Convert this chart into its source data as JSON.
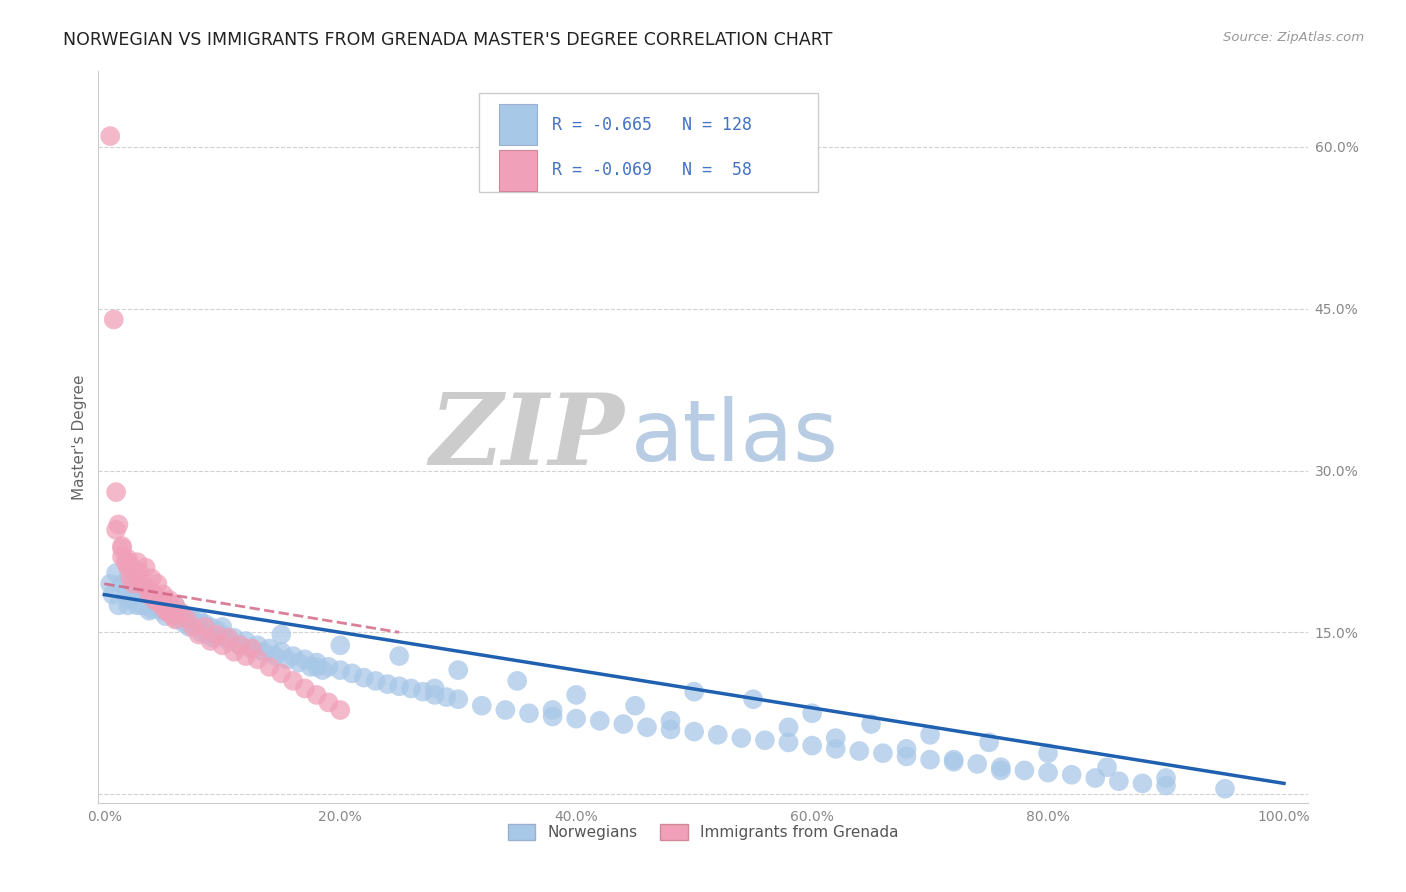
{
  "title": "NORWEGIAN VS IMMIGRANTS FROM GRENADA MASTER'S DEGREE CORRELATION CHART",
  "source": "Source: ZipAtlas.com",
  "ylabel": "Master's Degree",
  "legend_labels": [
    "Norwegians",
    "Immigrants from Grenada"
  ],
  "legend_r_n": [
    {
      "r": "-0.665",
      "n": "128"
    },
    {
      "r": "-0.069",
      "n": " 58"
    }
  ],
  "blue_color": "#a8c8e8",
  "pink_color": "#f0a0b8",
  "blue_line_color": "#2060b0",
  "pink_line_color": "#d06080",
  "axis_label_color": "#666666",
  "tick_color": "#4472c4",
  "watermark_zip_color": "#cccccc",
  "watermark_atlas_color": "#b8cce4",
  "background_color": "#ffffff",
  "grid_color": "#cccccc",
  "x_ticks": [
    0.0,
    0.2,
    0.4,
    0.6,
    0.8,
    1.0
  ],
  "y_ticks": [
    0.0,
    0.15,
    0.3,
    0.45,
    0.6
  ],
  "norw_x": [
    0.005,
    0.007,
    0.01,
    0.012,
    0.015,
    0.018,
    0.02,
    0.022,
    0.025,
    0.028,
    0.03,
    0.032,
    0.035,
    0.038,
    0.04,
    0.042,
    0.045,
    0.048,
    0.05,
    0.052,
    0.055,
    0.058,
    0.06,
    0.062,
    0.065,
    0.068,
    0.07,
    0.072,
    0.075,
    0.08,
    0.082,
    0.085,
    0.088,
    0.09,
    0.092,
    0.095,
    0.1,
    0.105,
    0.11,
    0.115,
    0.12,
    0.125,
    0.13,
    0.135,
    0.14,
    0.145,
    0.15,
    0.155,
    0.16,
    0.165,
    0.17,
    0.175,
    0.18,
    0.185,
    0.19,
    0.2,
    0.21,
    0.22,
    0.23,
    0.24,
    0.25,
    0.26,
    0.27,
    0.28,
    0.29,
    0.3,
    0.32,
    0.34,
    0.36,
    0.38,
    0.4,
    0.42,
    0.44,
    0.46,
    0.48,
    0.5,
    0.52,
    0.54,
    0.56,
    0.58,
    0.6,
    0.62,
    0.64,
    0.66,
    0.68,
    0.7,
    0.72,
    0.74,
    0.76,
    0.78,
    0.8,
    0.82,
    0.84,
    0.86,
    0.88,
    0.9,
    0.5,
    0.55,
    0.6,
    0.65,
    0.7,
    0.75,
    0.8,
    0.85,
    0.9,
    0.95,
    0.35,
    0.4,
    0.45,
    0.3,
    0.25,
    0.2,
    0.15,
    0.1,
    0.08,
    0.06,
    0.04,
    0.02,
    0.58,
    0.48,
    0.38,
    0.28,
    0.18,
    0.08,
    0.62,
    0.68,
    0.72,
    0.76
  ],
  "norw_y": [
    0.195,
    0.185,
    0.205,
    0.175,
    0.195,
    0.185,
    0.2,
    0.18,
    0.19,
    0.175,
    0.185,
    0.175,
    0.19,
    0.17,
    0.185,
    0.175,
    0.18,
    0.17,
    0.175,
    0.165,
    0.172,
    0.168,
    0.175,
    0.162,
    0.168,
    0.158,
    0.165,
    0.155,
    0.162,
    0.155,
    0.15,
    0.158,
    0.148,
    0.155,
    0.145,
    0.152,
    0.148,
    0.142,
    0.145,
    0.138,
    0.142,
    0.135,
    0.138,
    0.132,
    0.135,
    0.128,
    0.132,
    0.125,
    0.128,
    0.122,
    0.125,
    0.118,
    0.122,
    0.115,
    0.118,
    0.115,
    0.112,
    0.108,
    0.105,
    0.102,
    0.1,
    0.098,
    0.095,
    0.092,
    0.09,
    0.088,
    0.082,
    0.078,
    0.075,
    0.072,
    0.07,
    0.068,
    0.065,
    0.062,
    0.06,
    0.058,
    0.055,
    0.052,
    0.05,
    0.048,
    0.045,
    0.042,
    0.04,
    0.038,
    0.035,
    0.032,
    0.03,
    0.028,
    0.025,
    0.022,
    0.02,
    0.018,
    0.015,
    0.012,
    0.01,
    0.008,
    0.095,
    0.088,
    0.075,
    0.065,
    0.055,
    0.048,
    0.038,
    0.025,
    0.015,
    0.005,
    0.105,
    0.092,
    0.082,
    0.115,
    0.128,
    0.138,
    0.148,
    0.155,
    0.162,
    0.168,
    0.172,
    0.175,
    0.062,
    0.068,
    0.078,
    0.098,
    0.118,
    0.158,
    0.052,
    0.042,
    0.032,
    0.022
  ],
  "gren_x": [
    0.005,
    0.008,
    0.01,
    0.012,
    0.015,
    0.018,
    0.02,
    0.022,
    0.025,
    0.028,
    0.03,
    0.032,
    0.035,
    0.038,
    0.04,
    0.042,
    0.045,
    0.048,
    0.05,
    0.052,
    0.055,
    0.058,
    0.06,
    0.065,
    0.07,
    0.075,
    0.08,
    0.085,
    0.09,
    0.095,
    0.1,
    0.105,
    0.11,
    0.115,
    0.12,
    0.125,
    0.13,
    0.14,
    0.15,
    0.16,
    0.17,
    0.18,
    0.19,
    0.2,
    0.015,
    0.02,
    0.025,
    0.03,
    0.035,
    0.04,
    0.045,
    0.05,
    0.055,
    0.06,
    0.01,
    0.015,
    0.02,
    0.025
  ],
  "gren_y": [
    0.61,
    0.44,
    0.28,
    0.25,
    0.23,
    0.215,
    0.21,
    0.2,
    0.195,
    0.215,
    0.205,
    0.195,
    0.21,
    0.185,
    0.2,
    0.18,
    0.195,
    0.175,
    0.185,
    0.17,
    0.18,
    0.165,
    0.175,
    0.168,
    0.162,
    0.155,
    0.148,
    0.155,
    0.142,
    0.148,
    0.138,
    0.145,
    0.132,
    0.138,
    0.128,
    0.135,
    0.125,
    0.118,
    0.112,
    0.105,
    0.098,
    0.092,
    0.085,
    0.078,
    0.22,
    0.215,
    0.205,
    0.198,
    0.192,
    0.188,
    0.182,
    0.175,
    0.168,
    0.162,
    0.245,
    0.228,
    0.218,
    0.208
  ]
}
